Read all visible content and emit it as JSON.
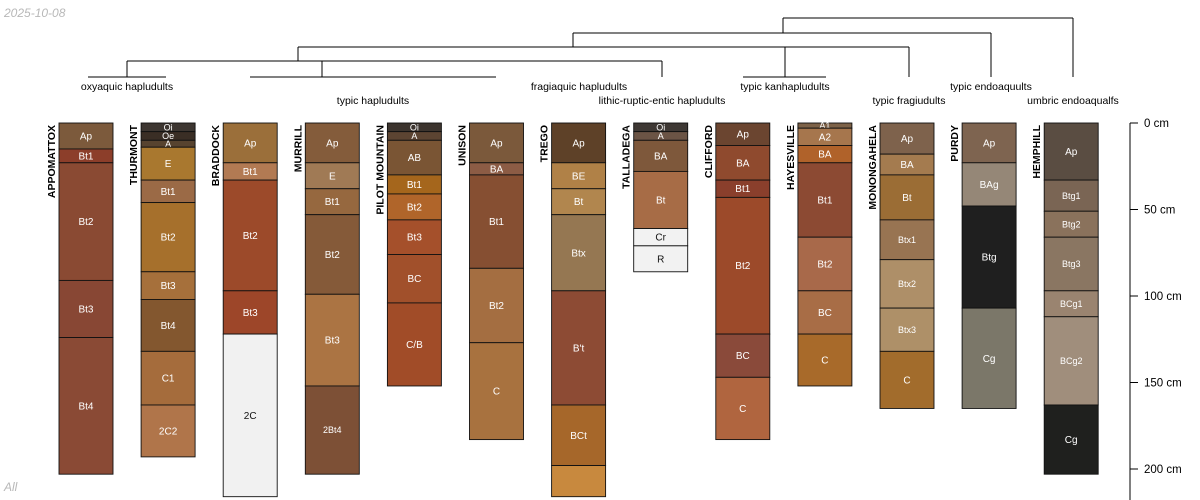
{
  "date": "2025-10-08",
  "aggregate_label": "All",
  "chart_data": {
    "type": "soil-profile-sketch",
    "title": "",
    "depth_unit": "cm",
    "depth_range": [
      0,
      218
    ],
    "depth_ticks": [
      {
        "value": 0,
        "label": "0 cm"
      },
      {
        "value": 50,
        "label": "50 cm"
      },
      {
        "value": 100,
        "label": "100 cm"
      },
      {
        "value": 150,
        "label": "150 cm"
      },
      {
        "value": 200,
        "label": "200 cm"
      }
    ],
    "taxa": [
      {
        "id": "oxyaquic",
        "label": "oxyaquic hapludults"
      },
      {
        "id": "typic_hap",
        "label": "typic hapludults"
      },
      {
        "id": "fragiaquic",
        "label": "fragiaquic hapludults"
      },
      {
        "id": "lithic",
        "label": "lithic-ruptic-entic hapludults"
      },
      {
        "id": "kanhap",
        "label": "typic kanhapludults"
      },
      {
        "id": "fragiudults",
        "label": "typic fragiudults"
      },
      {
        "id": "endoaquults",
        "label": "typic endoaquults"
      },
      {
        "id": "umbric",
        "label": "umbric endoaqualfs"
      }
    ],
    "profiles": [
      {
        "name": "APPOMATTOX",
        "taxon": "oxyaquic",
        "horizons": [
          {
            "name": "Ap",
            "top": 0,
            "bottom": 15,
            "color": "#7c5a3c"
          },
          {
            "name": "Bt1",
            "top": 15,
            "bottom": 23,
            "color": "#8c3e2a"
          },
          {
            "name": "Bt2",
            "top": 23,
            "bottom": 91,
            "color": "#8a4a33"
          },
          {
            "name": "Bt3",
            "top": 91,
            "bottom": 124,
            "color": "#884734"
          },
          {
            "name": "Bt4",
            "top": 124,
            "bottom": 203,
            "color": "#8a4a35"
          }
        ]
      },
      {
        "name": "THURMONT",
        "taxon": "typic_hap",
        "horizons": [
          {
            "name": "Oi",
            "top": 0,
            "bottom": 5,
            "color": "#3d3631"
          },
          {
            "name": "Oe",
            "top": 5,
            "bottom": 10,
            "color": "#3a2e25"
          },
          {
            "name": "A",
            "top": 10,
            "bottom": 14,
            "color": "#57432f"
          },
          {
            "name": "E",
            "top": 14,
            "bottom": 33,
            "color": "#a9782f"
          },
          {
            "name": "Bt1",
            "top": 33,
            "bottom": 46,
            "color": "#9b6a46"
          },
          {
            "name": "Bt2",
            "top": 46,
            "bottom": 86,
            "color": "#a6702c"
          },
          {
            "name": "Bt3",
            "top": 86,
            "bottom": 102,
            "color": "#a6703b"
          },
          {
            "name": "Bt4",
            "top": 102,
            "bottom": 132,
            "color": "#83572f"
          },
          {
            "name": "C1",
            "top": 132,
            "bottom": 163,
            "color": "#a56c3c"
          },
          {
            "name": "2C2",
            "top": 163,
            "bottom": 193,
            "color": "#b0754a"
          }
        ]
      },
      {
        "name": "BRADDOCK",
        "taxon": "typic_hap",
        "horizons": [
          {
            "name": "Ap",
            "top": 0,
            "bottom": 23,
            "color": "#9b6f3a"
          },
          {
            "name": "Bt1",
            "top": 23,
            "bottom": 33,
            "color": "#b27a53"
          },
          {
            "name": "Bt2",
            "top": 33,
            "bottom": 97,
            "color": "#9c4a2a"
          },
          {
            "name": "Bt3",
            "top": 97,
            "bottom": 122,
            "color": "#9d4629"
          },
          {
            "name": "2C",
            "top": 122,
            "bottom": 216,
            "color": "#f1f1f1"
          }
        ]
      },
      {
        "name": "MURRILL",
        "taxon": "typic_hap",
        "horizons": [
          {
            "name": "Ap",
            "top": 0,
            "bottom": 23,
            "color": "#845c3b"
          },
          {
            "name": "E",
            "top": 23,
            "bottom": 38,
            "color": "#a07a55"
          },
          {
            "name": "Bt1",
            "top": 38,
            "bottom": 53,
            "color": "#96683f"
          },
          {
            "name": "Bt2",
            "top": 53,
            "bottom": 99,
            "color": "#855a39"
          },
          {
            "name": "Bt3",
            "top": 99,
            "bottom": 152,
            "color": "#ab7443"
          },
          {
            "name": "2Bt4",
            "top": 152,
            "bottom": 203,
            "color": "#7d5036"
          }
        ]
      },
      {
        "name": "PILOT MOUNTAIN",
        "taxon": "typic_hap",
        "horizons": [
          {
            "name": "Oi",
            "top": 0,
            "bottom": 5,
            "color": "#3c342e"
          },
          {
            "name": "A",
            "top": 5,
            "bottom": 10,
            "color": "#5c4432"
          },
          {
            "name": "AB",
            "top": 10,
            "bottom": 30,
            "color": "#7a5534"
          },
          {
            "name": "Bt1",
            "top": 30,
            "bottom": 41,
            "color": "#a5661c"
          },
          {
            "name": "Bt2",
            "top": 41,
            "bottom": 56,
            "color": "#b0652a"
          },
          {
            "name": "Bt3",
            "top": 56,
            "bottom": 76,
            "color": "#a5502b"
          },
          {
            "name": "BC",
            "top": 76,
            "bottom": 104,
            "color": "#a1502b"
          },
          {
            "name": "C/B",
            "top": 104,
            "bottom": 152,
            "color": "#a14c28"
          }
        ]
      },
      {
        "name": "UNISON",
        "taxon": "typic_hap",
        "horizons": [
          {
            "name": "Ap",
            "top": 0,
            "bottom": 23,
            "color": "#7b593b"
          },
          {
            "name": "BA",
            "top": 23,
            "bottom": 30,
            "color": "#8c5c45"
          },
          {
            "name": "Bt1",
            "top": 30,
            "bottom": 84,
            "color": "#864f32"
          },
          {
            "name": "Bt2",
            "top": 84,
            "bottom": 127,
            "color": "#a46e41"
          },
          {
            "name": "C",
            "top": 127,
            "bottom": 183,
            "color": "#a8723f"
          }
        ]
      },
      {
        "name": "TREGO",
        "taxon": "fragiaquic",
        "horizons": [
          {
            "name": "Ap",
            "top": 0,
            "bottom": 23,
            "color": "#5e4128"
          },
          {
            "name": "BE",
            "top": 23,
            "bottom": 38,
            "color": "#b08147"
          },
          {
            "name": "Bt",
            "top": 38,
            "bottom": 53,
            "color": "#b1864e"
          },
          {
            "name": "Btx",
            "top": 53,
            "bottom": 97,
            "color": "#957752"
          },
          {
            "name": "B't",
            "top": 97,
            "bottom": 163,
            "color": "#8d4b34"
          },
          {
            "name": "BCt",
            "top": 163,
            "bottom": 198,
            "color": "#a6672a"
          },
          {
            "name": "",
            "top": 198,
            "bottom": 216,
            "color": "#c8893e"
          }
        ]
      },
      {
        "name": "TALLADEGA",
        "taxon": "lithic",
        "horizons": [
          {
            "name": "Oi",
            "top": 0,
            "bottom": 5,
            "color": "#3e3834"
          },
          {
            "name": "A",
            "top": 5,
            "bottom": 10,
            "color": "#6b5445"
          },
          {
            "name": "BA",
            "top": 10,
            "bottom": 28,
            "color": "#7e583b"
          },
          {
            "name": "Bt",
            "top": 28,
            "bottom": 61,
            "color": "#a76c46"
          },
          {
            "name": "Cr",
            "top": 61,
            "bottom": 71,
            "color": "#f2f2f2"
          },
          {
            "name": "R",
            "top": 71,
            "bottom": 86,
            "color": "#f2f2f2"
          }
        ]
      },
      {
        "name": "CLIFFORD",
        "taxon": "kanhap",
        "horizons": [
          {
            "name": "Ap",
            "top": 0,
            "bottom": 13,
            "color": "#6b4530"
          },
          {
            "name": "BA",
            "top": 13,
            "bottom": 33,
            "color": "#8f4a2e"
          },
          {
            "name": "Bt1",
            "top": 33,
            "bottom": 43,
            "color": "#8a3f2c"
          },
          {
            "name": "Bt2",
            "top": 43,
            "bottom": 122,
            "color": "#9c4a2a"
          },
          {
            "name": "BC",
            "top": 122,
            "bottom": 147,
            "color": "#8a4a3a"
          },
          {
            "name": "C",
            "top": 147,
            "bottom": 183,
            "color": "#b0653f"
          }
        ]
      },
      {
        "name": "HAYESVILLE",
        "taxon": "kanhap",
        "horizons": [
          {
            "name": "A1",
            "top": 0,
            "bottom": 3,
            "color": "#7d6248"
          },
          {
            "name": "A2",
            "top": 3,
            "bottom": 13,
            "color": "#a6764d"
          },
          {
            "name": "BA",
            "top": 13,
            "bottom": 23,
            "color": "#b0622a"
          },
          {
            "name": "Bt1",
            "top": 23,
            "bottom": 66,
            "color": "#8c4a33"
          },
          {
            "name": "Bt2",
            "top": 66,
            "bottom": 97,
            "color": "#a8694a"
          },
          {
            "name": "BC",
            "top": 97,
            "bottom": 122,
            "color": "#a86d46"
          },
          {
            "name": "C",
            "top": 122,
            "bottom": 152,
            "color": "#a86a2a"
          }
        ]
      },
      {
        "name": "MONONGAHELA",
        "taxon": "fragiudults",
        "horizons": [
          {
            "name": "Ap",
            "top": 0,
            "bottom": 18,
            "color": "#7e624c"
          },
          {
            "name": "BA",
            "top": 18,
            "bottom": 30,
            "color": "#a47b4f"
          },
          {
            "name": "Bt",
            "top": 30,
            "bottom": 56,
            "color": "#9b6d35"
          },
          {
            "name": "Btx1",
            "top": 56,
            "bottom": 79,
            "color": "#987452"
          },
          {
            "name": "Btx2",
            "top": 79,
            "bottom": 107,
            "color": "#ae8f68"
          },
          {
            "name": "Btx3",
            "top": 107,
            "bottom": 132,
            "color": "#ae9068"
          },
          {
            "name": "C",
            "top": 132,
            "bottom": 165,
            "color": "#a26c2c"
          }
        ]
      },
      {
        "name": "PURDY",
        "taxon": "endoaquults",
        "horizons": [
          {
            "name": "Ap",
            "top": 0,
            "bottom": 23,
            "color": "#7e6450"
          },
          {
            "name": "BAg",
            "top": 23,
            "bottom": 48,
            "color": "#958777"
          },
          {
            "name": "Btg",
            "top": 48,
            "bottom": 107,
            "color": "#1f1f1f"
          },
          {
            "name": "Cg",
            "top": 107,
            "bottom": 165,
            "color": "#7b7769"
          }
        ]
      },
      {
        "name": "HEMPHILL",
        "taxon": "umbric",
        "horizons": [
          {
            "name": "Ap",
            "top": 0,
            "bottom": 33,
            "color": "#5a4d42"
          },
          {
            "name": "Btg1",
            "top": 33,
            "bottom": 51,
            "color": "#7a6554"
          },
          {
            "name": "Btg2",
            "top": 51,
            "bottom": 66,
            "color": "#8a725c"
          },
          {
            "name": "Btg3",
            "top": 66,
            "bottom": 97,
            "color": "#8a7662"
          },
          {
            "name": "BCg1",
            "top": 97,
            "bottom": 112,
            "color": "#9a8470"
          },
          {
            "name": "BCg2",
            "top": 112,
            "bottom": 163,
            "color": "#a08e7c"
          },
          {
            "name": "Cg",
            "top": 163,
            "bottom": 203,
            "color": "#1f201e"
          }
        ]
      }
    ]
  }
}
